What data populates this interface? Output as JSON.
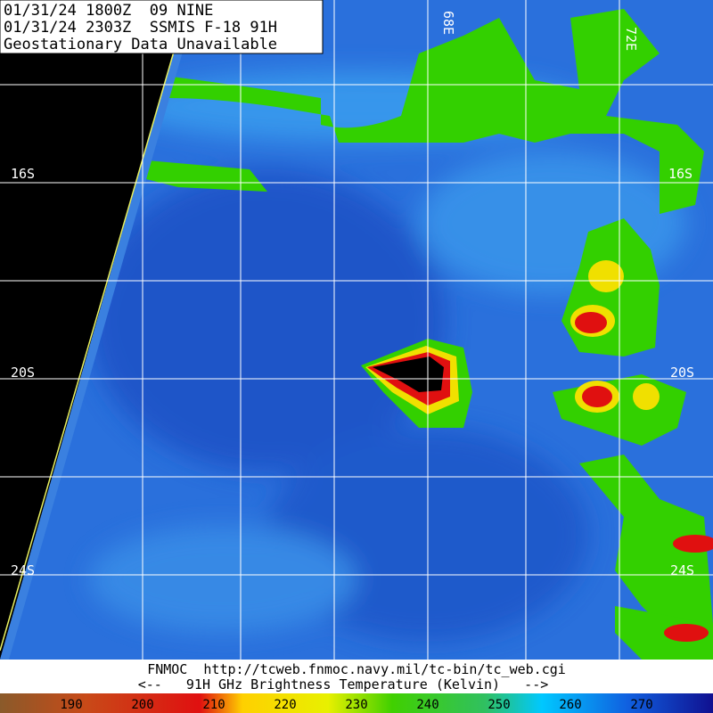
{
  "header": {
    "lines": [
      "01/31/24 1800Z  09 NINE",
      "01/31/24 2303Z  SSMIS F-18 91H",
      "Geostationary Data Unavailable"
    ]
  },
  "grid": {
    "longitude_labels": [
      "68E",
      "72E"
    ],
    "latitude_labels": [
      "16S",
      "20S",
      "24S"
    ]
  },
  "footer": {
    "source": "FNMOC  http://tcweb.fnmoc.navy.mil/tc-bin/tc_web.cgi",
    "caption": "<--   91H GHz Brightness Temperature (Kelvin)   -->"
  },
  "colorbar": {
    "labels": [
      190,
      200,
      210,
      220,
      230,
      240,
      250,
      260,
      270
    ]
  }
}
